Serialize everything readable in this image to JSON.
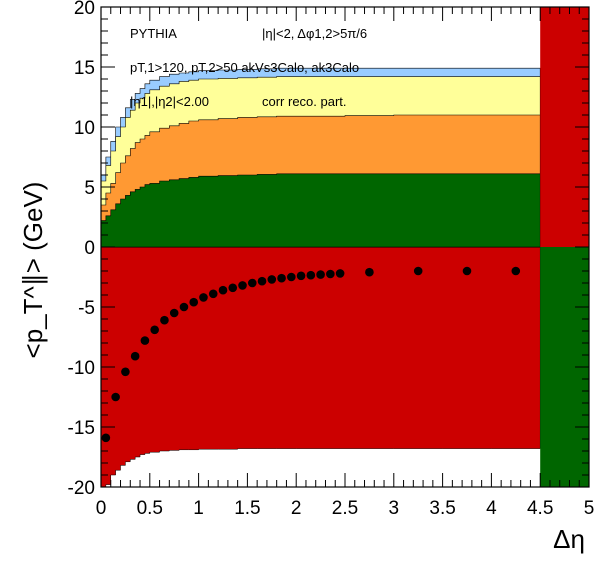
{
  "chart_data": {
    "type": "area",
    "xlabel": "Δη",
    "ylabel": "<p_T^∥> (GeV)",
    "xlim": [
      0,
      5
    ],
    "ylim": [
      -20,
      20
    ],
    "xticks": [
      0,
      0.5,
      1,
      1.5,
      2,
      2.5,
      3,
      3.5,
      4,
      4.5,
      5
    ],
    "xtick_labels": [
      "0",
      "0.5",
      "1",
      "1.5",
      "2",
      "2.5",
      "3",
      "3.5",
      "4",
      "4.5",
      "5"
    ],
    "yticks": [
      -20,
      -15,
      -10,
      -5,
      0,
      5,
      10,
      15,
      20
    ],
    "ytick_labels": [
      "-20",
      "-15",
      "-10",
      "-5",
      "0",
      "5",
      "10",
      "15",
      "20"
    ],
    "annotations": {
      "generator": "PYTHIA",
      "cuts": "|η|<2, Δφ1,2>5π/6",
      "selection": "pT,1>120, pT,2>50  akVs3Calo, ak3Calo",
      "eta_cut": "|η1|,|η2|<2.00",
      "method": "corr reco. part."
    },
    "stack_x_edges": [
      0,
      0.05,
      0.1,
      0.15,
      0.2,
      0.25,
      0.3,
      0.35,
      0.4,
      0.45,
      0.5,
      0.6,
      0.7,
      0.8,
      0.9,
      1.0,
      1.2,
      1.4,
      1.6,
      1.8,
      2.0,
      2.5,
      3.0,
      3.5,
      4.0,
      4.5
    ],
    "positive_stack": {
      "green": [
        2.2,
        2.6,
        3.1,
        3.6,
        4.0,
        4.3,
        4.6,
        4.8,
        5.0,
        5.2,
        5.3,
        5.5,
        5.6,
        5.7,
        5.8,
        5.9,
        5.95,
        6.0,
        6.05,
        6.1,
        6.1,
        6.1,
        6.1,
        6.1,
        6.1
      ],
      "orange": [
        3.5,
        4.5,
        5.3,
        6.2,
        7.0,
        7.6,
        8.2,
        8.7,
        9.0,
        9.3,
        9.6,
        9.9,
        10.1,
        10.3,
        10.5,
        10.6,
        10.7,
        10.8,
        10.85,
        10.9,
        10.9,
        10.95,
        11.0,
        11.0,
        11.0
      ],
      "yellow": [
        5.5,
        6.8,
        8.0,
        9.2,
        10.0,
        10.8,
        11.4,
        12.0,
        12.4,
        12.8,
        13.1,
        13.4,
        13.6,
        13.8,
        13.9,
        14.0,
        14.05,
        14.1,
        14.15,
        14.2,
        14.2,
        14.2,
        14.2,
        14.2,
        14.2
      ],
      "blue": [
        6.0,
        7.5,
        8.8,
        10.0,
        10.8,
        11.6,
        12.3,
        12.8,
        13.2,
        13.6,
        13.9,
        14.2,
        14.4,
        14.5,
        14.6,
        14.7,
        14.75,
        14.8,
        14.85,
        14.9,
        14.9,
        14.9,
        14.9,
        14.9,
        14.9
      ]
    },
    "negative_region_lower": [
      -20,
      -19.8,
      -19.0,
      -18.6,
      -18.2,
      -17.9,
      -17.7,
      -17.5,
      -17.3,
      -17.2,
      -17.1,
      -17.0,
      -16.95,
      -16.9,
      -16.9,
      -16.85,
      -16.85,
      -16.8,
      -16.8,
      -16.8,
      -16.8,
      -16.8,
      -16.8,
      -16.8,
      -16.8
    ],
    "points": {
      "x": [
        0.05,
        0.15,
        0.25,
        0.35,
        0.45,
        0.55,
        0.65,
        0.75,
        0.85,
        0.95,
        1.05,
        1.15,
        1.25,
        1.35,
        1.45,
        1.55,
        1.65,
        1.75,
        1.85,
        1.95,
        2.05,
        2.15,
        2.25,
        2.35,
        2.45,
        2.75,
        3.25,
        3.75,
        4.25
      ],
      "y": [
        -15.9,
        -12.5,
        -10.4,
        -9.1,
        -7.8,
        -6.9,
        -6.1,
        -5.5,
        -5.0,
        -4.6,
        -4.2,
        -3.9,
        -3.6,
        -3.4,
        -3.2,
        -3.0,
        -2.85,
        -2.7,
        -2.6,
        -2.5,
        -2.4,
        -2.35,
        -2.3,
        -2.25,
        -2.2,
        -2.1,
        -2.0,
        -2.0,
        -2.0
      ]
    },
    "colors": {
      "red": "#cc0000",
      "green": "#006600",
      "orange": "#ff9933",
      "yellow": "#ffff99",
      "blue": "#99ccff",
      "points": "#000000"
    }
  }
}
